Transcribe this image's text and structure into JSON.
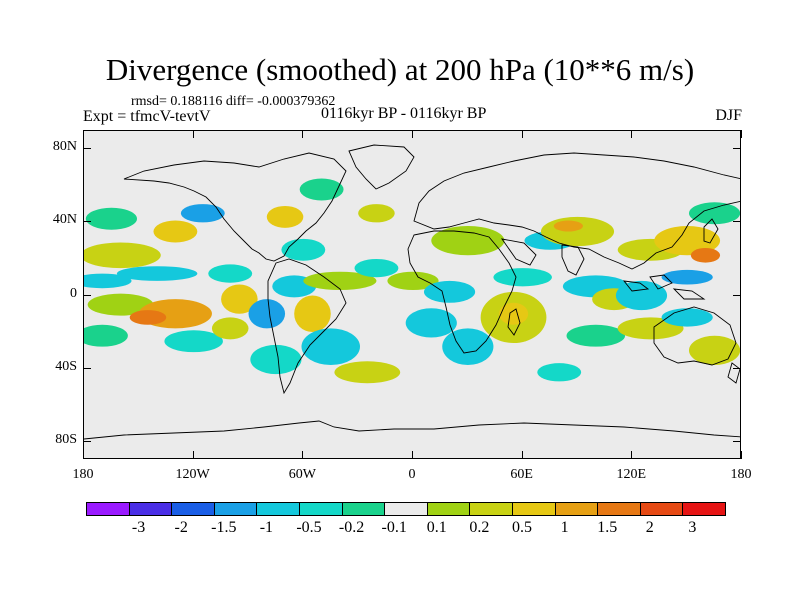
{
  "title": "Divergence (smoothed) at 200 hPa (10**6 m/s)",
  "stats_text": "rmsd= 0.188116 diff= -0.000379362",
  "experiment_text": "Expt = tfmcV-tevtV",
  "period_text": "0116kyr BP - 0116kyr BP",
  "season_text": "DJF",
  "y_axis": {
    "ticks": [
      {
        "value": 80,
        "label": "80N"
      },
      {
        "value": 40,
        "label": "40N"
      },
      {
        "value": 0,
        "label": "0"
      },
      {
        "value": -40,
        "label": "40S"
      },
      {
        "value": -80,
        "label": "80S"
      }
    ]
  },
  "x_axis": {
    "ticks": [
      {
        "value": -180,
        "label": "180"
      },
      {
        "value": -120,
        "label": "120W"
      },
      {
        "value": -60,
        "label": "60W"
      },
      {
        "value": 0,
        "label": "0"
      },
      {
        "value": 60,
        "label": "60E"
      },
      {
        "value": 120,
        "label": "120E"
      },
      {
        "value": 180,
        "label": "180"
      }
    ]
  },
  "colorbar": {
    "colors": [
      "#9a1aff",
      "#4a2ee6",
      "#1a5ee6",
      "#1aa0e6",
      "#14c8dc",
      "#14d8c8",
      "#1ad28c",
      "#ebebeb",
      "#a0d214",
      "#c8d214",
      "#e6c814",
      "#e6a014",
      "#e67814",
      "#e64a14",
      "#e61414"
    ],
    "labels": [
      "-3",
      "-2",
      "-1.5",
      "-1",
      "-0.5",
      "-0.2",
      "-0.1",
      "0.1",
      "0.2",
      "0.5",
      "1",
      "1.5",
      "2",
      "3"
    ]
  },
  "map": {
    "background_color": "#ebebeb",
    "coastline_color": "#000000",
    "field_features": [
      {
        "lon": -160,
        "lat": 22,
        "rx": 22,
        "ry": 7,
        "color": "#c8d214"
      },
      {
        "lon": -130,
        "lat": 35,
        "rx": 12,
        "ry": 6,
        "color": "#e6c814"
      },
      {
        "lon": -165,
        "lat": 42,
        "rx": 14,
        "ry": 6,
        "color": "#1ad28c"
      },
      {
        "lon": -115,
        "lat": 45,
        "rx": 12,
        "ry": 5,
        "color": "#1aa0e6"
      },
      {
        "lon": -170,
        "lat": 8,
        "rx": 16,
        "ry": 4,
        "color": "#14c8dc"
      },
      {
        "lon": -140,
        "lat": 12,
        "rx": 22,
        "ry": 4,
        "color": "#14c8dc"
      },
      {
        "lon": -100,
        "lat": 12,
        "rx": 12,
        "ry": 5,
        "color": "#14d8c8"
      },
      {
        "lon": -160,
        "lat": -5,
        "rx": 18,
        "ry": 6,
        "color": "#a0d214"
      },
      {
        "lon": -130,
        "lat": -10,
        "rx": 20,
        "ry": 8,
        "color": "#e6a014"
      },
      {
        "lon": -145,
        "lat": -12,
        "rx": 10,
        "ry": 4,
        "color": "#e67814"
      },
      {
        "lon": -170,
        "lat": -22,
        "rx": 14,
        "ry": 6,
        "color": "#1ad28c"
      },
      {
        "lon": -120,
        "lat": -25,
        "rx": 16,
        "ry": 6,
        "color": "#14d8c8"
      },
      {
        "lon": -95,
        "lat": -2,
        "rx": 10,
        "ry": 8,
        "color": "#e6c814"
      },
      {
        "lon": -100,
        "lat": -18,
        "rx": 10,
        "ry": 6,
        "color": "#c8d214"
      },
      {
        "lon": -80,
        "lat": -10,
        "rx": 10,
        "ry": 8,
        "color": "#1aa0e6"
      },
      {
        "lon": -65,
        "lat": 5,
        "rx": 12,
        "ry": 6,
        "color": "#14c8dc"
      },
      {
        "lon": -55,
        "lat": -10,
        "rx": 10,
        "ry": 10,
        "color": "#e6c814"
      },
      {
        "lon": -75,
        "lat": -35,
        "rx": 14,
        "ry": 8,
        "color": "#14d8c8"
      },
      {
        "lon": -45,
        "lat": -28,
        "rx": 16,
        "ry": 10,
        "color": "#14c8dc"
      },
      {
        "lon": -25,
        "lat": -42,
        "rx": 18,
        "ry": 6,
        "color": "#c8d214"
      },
      {
        "lon": -40,
        "lat": 8,
        "rx": 20,
        "ry": 5,
        "color": "#a0d214"
      },
      {
        "lon": -60,
        "lat": 25,
        "rx": 12,
        "ry": 6,
        "color": "#14d8c8"
      },
      {
        "lon": -70,
        "lat": 43,
        "rx": 10,
        "ry": 6,
        "color": "#e6c814"
      },
      {
        "lon": -50,
        "lat": 58,
        "rx": 12,
        "ry": 6,
        "color": "#1ad28c"
      },
      {
        "lon": -20,
        "lat": 45,
        "rx": 10,
        "ry": 5,
        "color": "#c8d214"
      },
      {
        "lon": -20,
        "lat": 15,
        "rx": 12,
        "ry": 5,
        "color": "#14d8c8"
      },
      {
        "lon": 0,
        "lat": 8,
        "rx": 14,
        "ry": 5,
        "color": "#a0d214"
      },
      {
        "lon": 20,
        "lat": 2,
        "rx": 14,
        "ry": 6,
        "color": "#14c8dc"
      },
      {
        "lon": 10,
        "lat": -15,
        "rx": 14,
        "ry": 8,
        "color": "#14c8dc"
      },
      {
        "lon": 30,
        "lat": 30,
        "rx": 20,
        "ry": 8,
        "color": "#a0d214"
      },
      {
        "lon": 30,
        "lat": -28,
        "rx": 14,
        "ry": 10,
        "color": "#14c8dc"
      },
      {
        "lon": 55,
        "lat": -12,
        "rx": 18,
        "ry": 14,
        "color": "#c8d214"
      },
      {
        "lon": 55,
        "lat": -10,
        "rx": 8,
        "ry": 6,
        "color": "#e6c814"
      },
      {
        "lon": 60,
        "lat": 10,
        "rx": 16,
        "ry": 5,
        "color": "#14d8c8"
      },
      {
        "lon": 75,
        "lat": 30,
        "rx": 14,
        "ry": 5,
        "color": "#14c8dc"
      },
      {
        "lon": 90,
        "lat": 35,
        "rx": 20,
        "ry": 8,
        "color": "#c8d214"
      },
      {
        "lon": 85,
        "lat": 38,
        "rx": 8,
        "ry": 3,
        "color": "#e6a014"
      },
      {
        "lon": 100,
        "lat": 5,
        "rx": 18,
        "ry": 6,
        "color": "#14c8dc"
      },
      {
        "lon": 110,
        "lat": -2,
        "rx": 12,
        "ry": 6,
        "color": "#c8d214"
      },
      {
        "lon": 125,
        "lat": 0,
        "rx": 14,
        "ry": 8,
        "color": "#14c8dc"
      },
      {
        "lon": 130,
        "lat": 25,
        "rx": 18,
        "ry": 6,
        "color": "#c8d214"
      },
      {
        "lon": 150,
        "lat": 30,
        "rx": 18,
        "ry": 8,
        "color": "#e6c814"
      },
      {
        "lon": 150,
        "lat": 10,
        "rx": 14,
        "ry": 4,
        "color": "#1aa0e6"
      },
      {
        "lon": 160,
        "lat": 22,
        "rx": 8,
        "ry": 4,
        "color": "#e67814"
      },
      {
        "lon": 100,
        "lat": -22,
        "rx": 16,
        "ry": 6,
        "color": "#1ad28c"
      },
      {
        "lon": 130,
        "lat": -18,
        "rx": 18,
        "ry": 6,
        "color": "#c8d214"
      },
      {
        "lon": 150,
        "lat": -12,
        "rx": 14,
        "ry": 5,
        "color": "#14c8dc"
      },
      {
        "lon": 165,
        "lat": -30,
        "rx": 14,
        "ry": 8,
        "color": "#c8d214"
      },
      {
        "lon": 80,
        "lat": -42,
        "rx": 12,
        "ry": 5,
        "color": "#14d8c8"
      },
      {
        "lon": 165,
        "lat": 45,
        "rx": 14,
        "ry": 6,
        "color": "#1ad28c"
      }
    ]
  }
}
